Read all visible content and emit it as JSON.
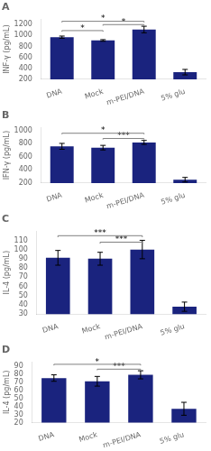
{
  "chart_data": [
    {
      "type": "bar",
      "title": "A",
      "ylabel": "INF-γ (pg/mL)",
      "categories": [
        "DNA",
        "Mock",
        "m-PEI/DNA",
        "5% glu"
      ],
      "values": [
        970,
        910,
        1110,
        330
      ],
      "errors": [
        20,
        15,
        60,
        50
      ],
      "color": "#1a237e",
      "ylim": [
        200,
        1300
      ],
      "yticks": [
        200,
        400,
        600,
        800,
        1000,
        1200
      ],
      "grid": false,
      "annotations": [
        {
          "from": "DNA",
          "to": "Mock",
          "y": 1090,
          "label": "*"
        },
        {
          "from": "Mock",
          "to": "m-PEI/DNA",
          "y": 1200,
          "label": "*"
        },
        {
          "from": "DNA",
          "to": "m-PEI/DNA",
          "y": 1260,
          "label": "*"
        }
      ]
    },
    {
      "type": "bar",
      "title": "B",
      "ylabel": "IFN-γ (pg/mL)",
      "categories": [
        "DNA",
        "Mock",
        "m-PEI/DNA",
        "5% glu"
      ],
      "values": [
        760,
        740,
        820,
        250
      ],
      "errors": [
        45,
        35,
        30,
        35
      ],
      "color": "#1a237e",
      "ylim": [
        200,
        1050
      ],
      "yticks": [
        200,
        400,
        600,
        800,
        1000
      ],
      "grid": false,
      "annotations": [
        {
          "from": "Mock",
          "to": "m-PEI/DNA",
          "y": 880,
          "label": "***"
        },
        {
          "from": "DNA",
          "to": "m-PEI/DNA",
          "y": 960,
          "label": "*"
        }
      ]
    },
    {
      "type": "bar",
      "title": "C",
      "ylabel": "IL-4 (pg/mL)",
      "categories": [
        "DNA",
        "Mock",
        "m-PEI/DNA",
        "5% glu"
      ],
      "values": [
        91,
        90,
        100,
        38
      ],
      "errors": [
        8,
        7,
        10,
        5
      ],
      "color": "#1a237e",
      "ylim": [
        30,
        120
      ],
      "yticks": [
        30,
        40,
        50,
        60,
        70,
        80,
        90,
        100,
        110
      ],
      "grid": false,
      "annotations": [
        {
          "from": "Mock",
          "to": "m-PEI/DNA",
          "y": 108,
          "label": "***"
        },
        {
          "from": "DNA",
          "to": "m-PEI/DNA",
          "y": 115,
          "label": "***"
        }
      ]
    },
    {
      "type": "bar",
      "title": "D",
      "ylabel": "IL-4 (pg/mL)",
      "categories": [
        "DNA",
        "Mock",
        "m-PEI/DNA",
        "5% glu"
      ],
      "values": [
        75,
        71,
        79,
        37
      ],
      "errors": [
        4,
        6,
        5,
        8
      ],
      "color": "#1a237e",
      "ylim": [
        20,
        95
      ],
      "yticks": [
        20,
        30,
        40,
        50,
        60,
        70,
        80,
        90
      ],
      "grid": false,
      "annotations": [
        {
          "from": "Mock",
          "to": "m-PEI/DNA",
          "y": 86,
          "label": "***"
        },
        {
          "from": "DNA",
          "to": "m-PEI/DNA",
          "y": 92,
          "label": "*"
        }
      ]
    }
  ]
}
